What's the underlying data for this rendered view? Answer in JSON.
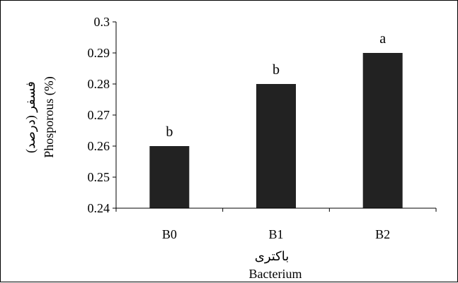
{
  "chart_data": {
    "type": "bar",
    "categories": [
      "B0",
      "B1",
      "B2"
    ],
    "values": [
      0.26,
      0.28,
      0.29
    ],
    "significance_letters": [
      "b",
      "b",
      "a"
    ],
    "ylim": [
      0.24,
      0.3
    ],
    "y_ticks": [
      "0.24",
      "0.25",
      "0.26",
      "0.27",
      "0.28",
      "0.29",
      "0.3"
    ],
    "ylabel": "Phosporous (%)",
    "ylabel_fa": "فسفر (درصد)",
    "xlabel": "Bacterium",
    "xlabel_fa": "باکتری",
    "grid": false,
    "legend": "none",
    "bar_color": "#222222"
  }
}
